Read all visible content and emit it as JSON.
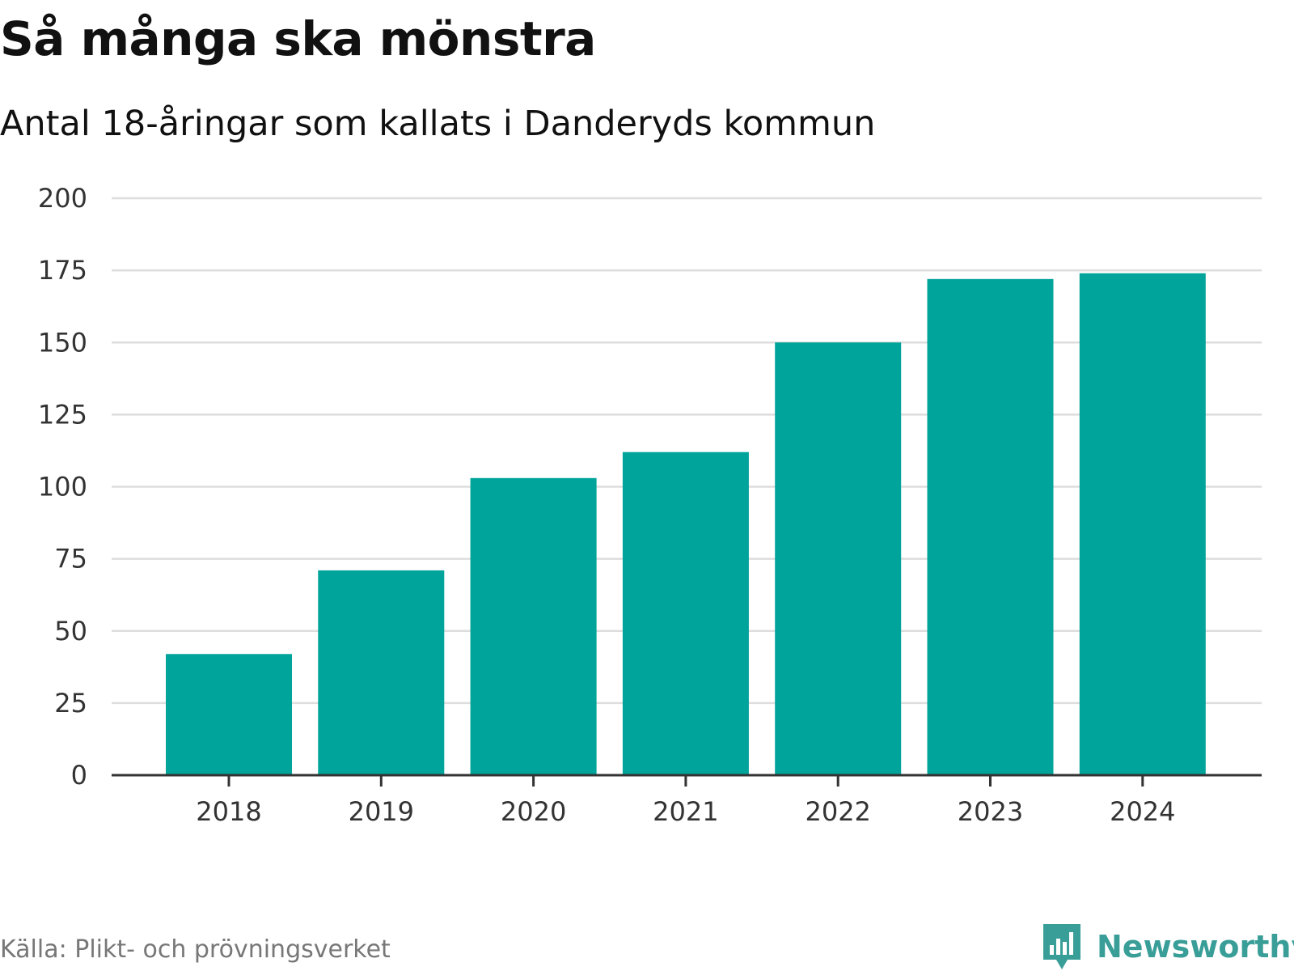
{
  "chart_data": {
    "type": "bar",
    "title": "Så många ska mönstra",
    "subtitle": "Antal 18-åringar som kallats i Danderyds kommun",
    "categories": [
      "2018",
      "2019",
      "2020",
      "2021",
      "2022",
      "2023",
      "2024"
    ],
    "values": [
      42,
      71,
      103,
      112,
      150,
      172,
      174
    ],
    "xlabel": "",
    "ylabel": "",
    "ylim": [
      0,
      200
    ],
    "yticks": [
      "0",
      "25",
      "50",
      "75",
      "100",
      "125",
      "150",
      "175",
      "200"
    ],
    "grid": true,
    "bar_color": "#00a49a",
    "source": "Källa: Plikt- och prövningsverket"
  },
  "brand": {
    "name": "Newsworthy",
    "color": "#3a9e98"
  }
}
